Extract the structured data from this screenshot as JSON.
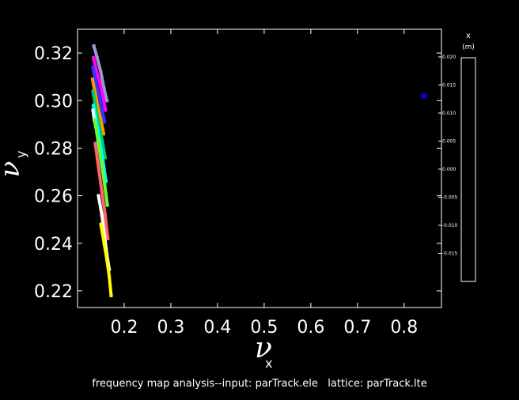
{
  "chart_data": {
    "type": "scatter",
    "title": "",
    "xlabel": "ν",
    "xlabel_sub": "x",
    "ylabel": "ν",
    "ylabel_sub": "y",
    "xlim": [
      0.1,
      0.88
    ],
    "ylim": [
      0.213,
      0.33
    ],
    "x_ticks": [
      0.2,
      0.3,
      0.4,
      0.5,
      0.6,
      0.7,
      0.8
    ],
    "x_tick_labels": [
      "0.2",
      "0.3",
      "0.4",
      "0.5",
      "0.6",
      "0.7",
      "0.8"
    ],
    "y_ticks": [
      0.22,
      0.24,
      0.26,
      0.28,
      0.3,
      0.32
    ],
    "y_tick_labels": [
      "0.22",
      "0.24",
      "0.26",
      "0.28",
      "0.30",
      "0.32"
    ],
    "grid": false,
    "series": [
      {
        "color": "#9999cc",
        "points": [
          [
            0.135,
            0.323
          ],
          [
            0.142,
            0.318
          ],
          [
            0.15,
            0.312
          ],
          [
            0.157,
            0.305
          ],
          [
            0.163,
            0.3
          ]
        ]
      },
      {
        "color": "#ff00ff",
        "points": [
          [
            0.134,
            0.318
          ],
          [
            0.14,
            0.313
          ],
          [
            0.147,
            0.308
          ],
          [
            0.154,
            0.302
          ],
          [
            0.16,
            0.296
          ]
        ]
      },
      {
        "color": "#3333ff",
        "points": [
          [
            0.133,
            0.314
          ],
          [
            0.138,
            0.309
          ],
          [
            0.145,
            0.303
          ],
          [
            0.152,
            0.297
          ],
          [
            0.158,
            0.291
          ]
        ]
      },
      {
        "color": "#ff9900",
        "points": [
          [
            0.132,
            0.309
          ],
          [
            0.137,
            0.304
          ],
          [
            0.143,
            0.298
          ],
          [
            0.15,
            0.292
          ],
          [
            0.156,
            0.286
          ]
        ]
      },
      {
        "color": "#00cc66",
        "points": [
          [
            0.133,
            0.304
          ],
          [
            0.139,
            0.297
          ],
          [
            0.146,
            0.29
          ],
          [
            0.153,
            0.283
          ],
          [
            0.159,
            0.276
          ]
        ]
      },
      {
        "color": "#00ffff",
        "points": [
          [
            0.134,
            0.298
          ],
          [
            0.141,
            0.29
          ],
          [
            0.148,
            0.282
          ],
          [
            0.155,
            0.274
          ],
          [
            0.161,
            0.266
          ]
        ]
      },
      {
        "color": "#ffffff",
        "points": [
          [
            0.133,
            0.296
          ],
          [
            0.136,
            0.292
          ],
          [
            0.139,
            0.289
          ]
        ]
      },
      {
        "color": "#66ff33",
        "points": [
          [
            0.137,
            0.292
          ],
          [
            0.144,
            0.283
          ],
          [
            0.151,
            0.274
          ],
          [
            0.158,
            0.265
          ],
          [
            0.164,
            0.256
          ]
        ]
      },
      {
        "color": "#ff6666",
        "points": [
          [
            0.138,
            0.282
          ],
          [
            0.145,
            0.272
          ],
          [
            0.152,
            0.262
          ],
          [
            0.159,
            0.252
          ],
          [
            0.165,
            0.242
          ]
        ]
      },
      {
        "color": "#ffffff",
        "points": [
          [
            0.145,
            0.26
          ],
          [
            0.152,
            0.252
          ],
          [
            0.158,
            0.243
          ],
          [
            0.163,
            0.235
          ],
          [
            0.168,
            0.229
          ]
        ]
      },
      {
        "color": "#ffff00",
        "points": [
          [
            0.15,
            0.248
          ],
          [
            0.157,
            0.24
          ],
          [
            0.163,
            0.233
          ],
          [
            0.168,
            0.226
          ],
          [
            0.172,
            0.218
          ]
        ]
      }
    ],
    "highlight_point": {
      "x": 0.842,
      "y": 0.302,
      "color": "#0000ff"
    }
  },
  "colorbar": {
    "title": "x",
    "unit": "(m)",
    "ticks": [
      "0.020",
      "0.015",
      "0.010",
      "0.005",
      "0.000",
      "-0.005",
      "-0.010",
      "-0.015"
    ]
  },
  "footer": {
    "text": "frequency map analysis--input: parTrack.ele   lattice: parTrack.lte"
  }
}
